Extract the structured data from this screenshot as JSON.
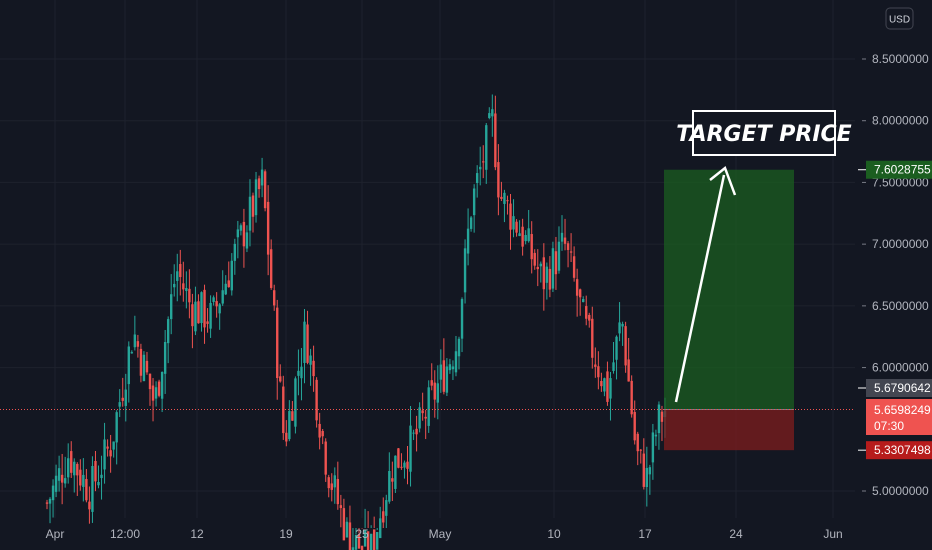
{
  "chart_data": {
    "type": "candlestick",
    "currency": "USD",
    "ylim": [
      4.75,
      8.95
    ],
    "y_ticks": [
      5.0,
      6.0,
      6.5,
      7.0,
      7.5,
      8.0,
      8.5
    ],
    "y_tick_labels": [
      "5.0000000",
      "6.0000000",
      "6.5000000",
      "7.0000000",
      "7.5000000",
      "8.0000000",
      "8.5000000"
    ],
    "x_ticks": [
      "Apr",
      "12:00",
      "12",
      "19",
      "25",
      "May",
      "10",
      "17",
      "24",
      "Jun"
    ],
    "colors": {
      "up": "#26a69a",
      "down": "#ef5350",
      "background": "#131722",
      "grid": "#1e222d"
    },
    "price_path": [
      [
        0,
        4.9
      ],
      [
        3,
        5.3
      ],
      [
        6,
        5.0
      ],
      [
        9,
        5.4
      ],
      [
        12,
        6.3
      ],
      [
        15,
        5.7
      ],
      [
        18,
        6.8
      ],
      [
        20,
        6.5
      ],
      [
        23,
        6.4
      ],
      [
        26,
        6.9
      ],
      [
        30,
        7.5
      ],
      [
        33,
        5.4
      ],
      [
        36,
        6.3
      ],
      [
        39,
        5.2
      ],
      [
        42,
        4.6
      ],
      [
        45,
        4.5
      ],
      [
        48,
        5.2
      ],
      [
        51,
        5.4
      ],
      [
        54,
        5.8
      ],
      [
        57,
        6.2
      ],
      [
        59,
        7.3
      ],
      [
        62,
        8.0
      ],
      [
        63,
        7.4
      ],
      [
        66,
        7.1
      ],
      [
        69,
        6.7
      ],
      [
        72,
        7.0
      ],
      [
        75,
        6.3
      ],
      [
        78,
        5.8
      ],
      [
        80,
        6.4
      ],
      [
        82,
        5.3
      ],
      [
        83.5,
        5.1
      ],
      [
        85,
        5.55
      ],
      [
        86,
        5.66
      ]
    ],
    "last_price": "5.6598249",
    "countdown": "07:30",
    "other_level": "5.6790642",
    "target_level": "7.6028755",
    "stop_level": "5.3307498",
    "position": {
      "entry": 5.6598249,
      "target": 7.6028755,
      "stop": 5.3307498,
      "start_x": 86,
      "end_x": 105
    },
    "annotation": "TARGET PRICE"
  }
}
